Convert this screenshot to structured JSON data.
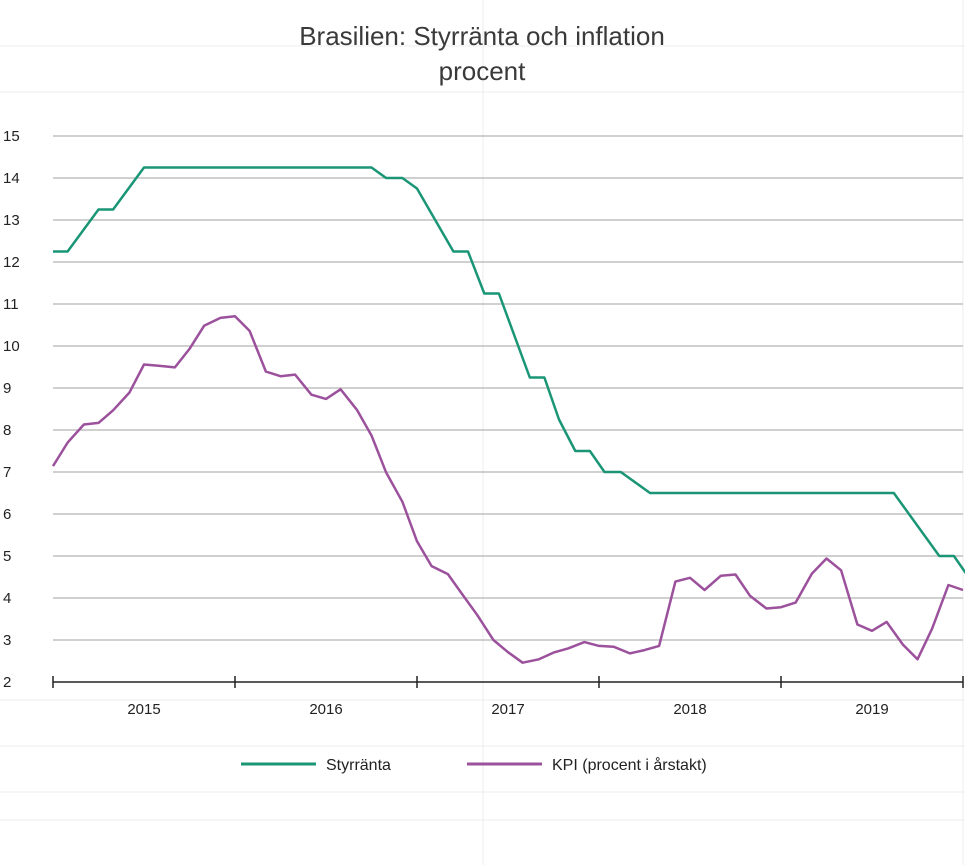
{
  "chart_data": {
    "type": "line",
    "title": "Brasilien: Styrränta och inflation",
    "subtitle": "procent",
    "xlabel": "",
    "ylabel": "",
    "ylim": [
      2,
      15
    ],
    "yticks": [
      2,
      3,
      4,
      5,
      6,
      7,
      8,
      9,
      10,
      11,
      12,
      13,
      14,
      15
    ],
    "xlim": [
      2015.0,
      2020.0
    ],
    "year_labels": [
      "2015",
      "2016",
      "2017",
      "2018",
      "2019"
    ],
    "grid": true,
    "legend_position": "bottom",
    "series": [
      {
        "name": "Styrränta",
        "color": "#1a9676",
        "points": [
          [
            2015.0,
            12.25
          ],
          [
            2015.08,
            12.25
          ],
          [
            2015.25,
            13.25
          ],
          [
            2015.33,
            13.25
          ],
          [
            2015.5,
            14.25
          ],
          [
            2016.75,
            14.25
          ],
          [
            2016.83,
            14.0
          ],
          [
            2016.92,
            14.0
          ],
          [
            2017.0,
            13.75
          ],
          [
            2017.2,
            12.25
          ],
          [
            2017.28,
            12.25
          ],
          [
            2017.37,
            11.25
          ],
          [
            2017.45,
            11.25
          ],
          [
            2017.62,
            9.25
          ],
          [
            2017.7,
            9.25
          ],
          [
            2017.78,
            8.25
          ],
          [
            2017.87,
            7.5
          ],
          [
            2017.95,
            7.5
          ],
          [
            2018.03,
            7.0
          ],
          [
            2018.12,
            7.0
          ],
          [
            2018.28,
            6.5
          ],
          [
            2019.62,
            6.5
          ],
          [
            2019.87,
            5.0
          ],
          [
            2019.95,
            5.0
          ],
          [
            2020.03,
            4.5
          ],
          [
            2020.12,
            4.5
          ]
        ]
      },
      {
        "name": "KPI (procent i årstakt)",
        "color": "#9b519b",
        "points": [
          [
            2015.0,
            7.14
          ],
          [
            2015.08,
            7.7
          ],
          [
            2015.17,
            8.13
          ],
          [
            2015.25,
            8.17
          ],
          [
            2015.33,
            8.47
          ],
          [
            2015.42,
            8.89
          ],
          [
            2015.5,
            9.56
          ],
          [
            2015.58,
            9.53
          ],
          [
            2015.67,
            9.49
          ],
          [
            2015.75,
            9.93
          ],
          [
            2015.83,
            10.48
          ],
          [
            2015.92,
            10.67
          ],
          [
            2016.0,
            10.71
          ],
          [
            2016.08,
            10.36
          ],
          [
            2016.17,
            9.39
          ],
          [
            2016.25,
            9.28
          ],
          [
            2016.33,
            9.32
          ],
          [
            2016.42,
            8.84
          ],
          [
            2016.5,
            8.74
          ],
          [
            2016.58,
            8.97
          ],
          [
            2016.67,
            8.48
          ],
          [
            2016.75,
            7.87
          ],
          [
            2016.83,
            6.99
          ],
          [
            2016.92,
            6.29
          ],
          [
            2017.0,
            5.35
          ],
          [
            2017.08,
            4.76
          ],
          [
            2017.17,
            4.57
          ],
          [
            2017.25,
            4.08
          ],
          [
            2017.33,
            3.6
          ],
          [
            2017.42,
            3.0
          ],
          [
            2017.5,
            2.71
          ],
          [
            2017.58,
            2.46
          ],
          [
            2017.67,
            2.54
          ],
          [
            2017.75,
            2.7
          ],
          [
            2017.83,
            2.8
          ],
          [
            2017.92,
            2.95
          ],
          [
            2018.0,
            2.86
          ],
          [
            2018.08,
            2.84
          ],
          [
            2018.17,
            2.68
          ],
          [
            2018.25,
            2.76
          ],
          [
            2018.33,
            2.86
          ],
          [
            2018.42,
            4.39
          ],
          [
            2018.5,
            4.48
          ],
          [
            2018.58,
            4.19
          ],
          [
            2018.67,
            4.53
          ],
          [
            2018.75,
            4.56
          ],
          [
            2018.83,
            4.05
          ],
          [
            2018.92,
            3.75
          ],
          [
            2019.0,
            3.78
          ],
          [
            2019.08,
            3.89
          ],
          [
            2019.17,
            4.58
          ],
          [
            2019.25,
            4.94
          ],
          [
            2019.33,
            4.66
          ],
          [
            2019.42,
            3.37
          ],
          [
            2019.5,
            3.22
          ],
          [
            2019.58,
            3.43
          ],
          [
            2019.67,
            2.89
          ],
          [
            2019.75,
            2.54
          ],
          [
            2019.83,
            3.27
          ],
          [
            2019.92,
            4.31
          ],
          [
            2020.0,
            4.19
          ]
        ]
      }
    ]
  }
}
